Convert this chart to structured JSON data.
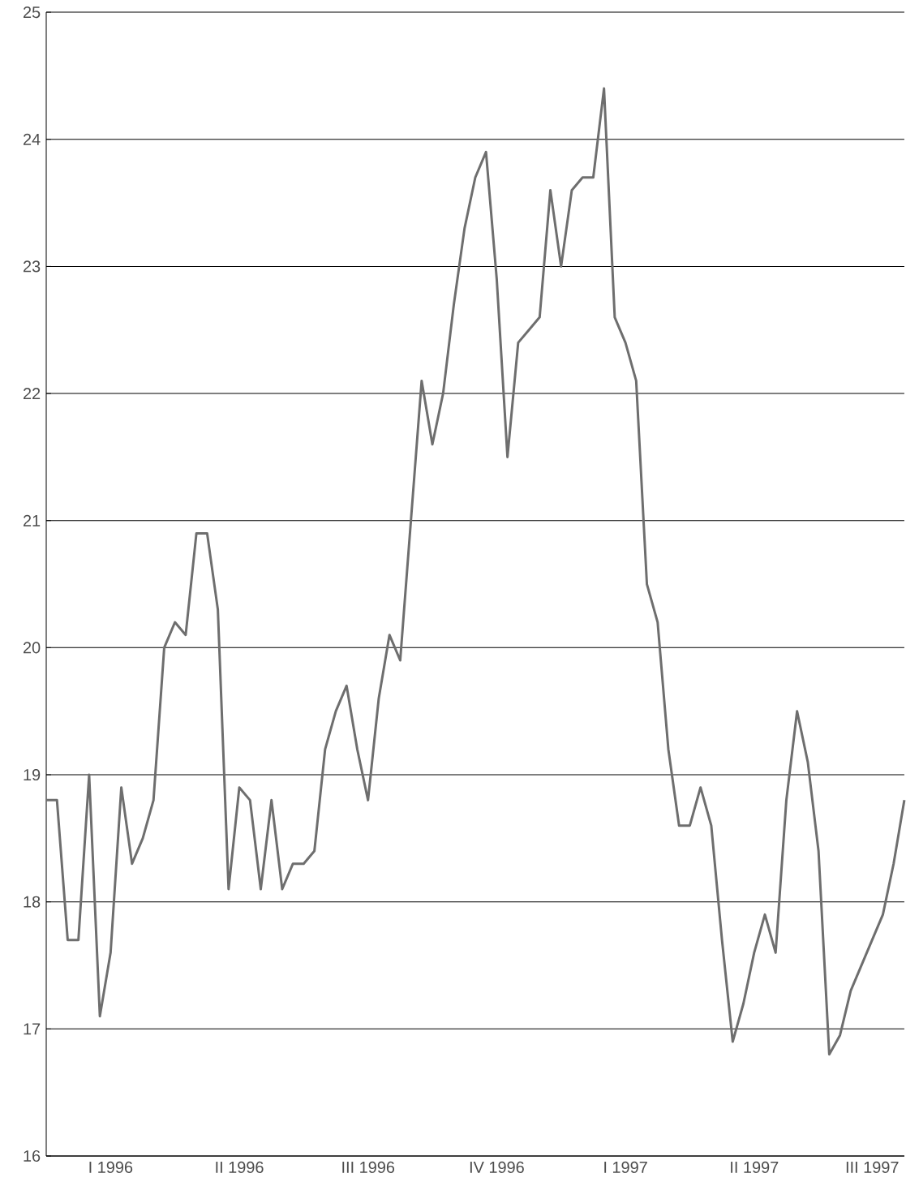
{
  "chart_data": {
    "type": "line",
    "categories": [
      null,
      null,
      null,
      null,
      null,
      null,
      "I 1996",
      null,
      null,
      null,
      null,
      null,
      null,
      null,
      null,
      null,
      null,
      null,
      "II 1996",
      null,
      null,
      null,
      null,
      null,
      null,
      null,
      null,
      null,
      null,
      null,
      "III 1996",
      null,
      null,
      null,
      null,
      null,
      null,
      null,
      null,
      null,
      null,
      null,
      "IV 1996",
      null,
      null,
      null,
      null,
      null,
      null,
      null,
      null,
      null,
      null,
      null,
      "I 1997",
      null,
      null,
      null,
      null,
      null,
      null,
      null,
      null,
      null,
      null,
      null,
      "II 1997",
      null,
      null,
      null,
      null,
      null,
      null,
      null,
      null,
      null,
      null,
      "III 1997",
      null,
      null,
      null
    ],
    "series": [
      {
        "color": "#6e6e6e",
        "values": [
          18.8,
          18.8,
          17.7,
          17.7,
          19.0,
          17.1,
          17.6,
          18.9,
          18.3,
          18.5,
          18.8,
          20.0,
          20.2,
          20.1,
          20.9,
          20.9,
          20.3,
          18.1,
          18.9,
          18.8,
          18.1,
          18.8,
          18.1,
          18.3,
          18.3,
          18.4,
          19.2,
          19.5,
          19.7,
          19.2,
          18.8,
          19.6,
          20.1,
          19.9,
          21.0,
          22.1,
          21.6,
          22.0,
          22.7,
          23.3,
          23.7,
          23.9,
          22.9,
          21.5,
          22.4,
          22.5,
          22.6,
          23.6,
          23.0,
          23.6,
          23.7,
          23.7,
          24.4,
          22.6,
          22.4,
          22.1,
          20.5,
          20.2,
          19.2,
          18.6,
          18.6,
          18.9,
          18.6,
          17.7,
          16.9,
          17.2,
          17.6,
          17.9,
          17.6,
          18.8,
          19.5,
          19.1,
          18.4,
          16.8,
          16.95,
          17.3,
          17.5,
          17.7,
          17.9,
          18.3,
          18.8
        ]
      }
    ],
    "ylim": [
      16,
      25
    ],
    "yticks": [
      16,
      17,
      18,
      19,
      20,
      21,
      22,
      23,
      24,
      25
    ],
    "grid": "y"
  }
}
